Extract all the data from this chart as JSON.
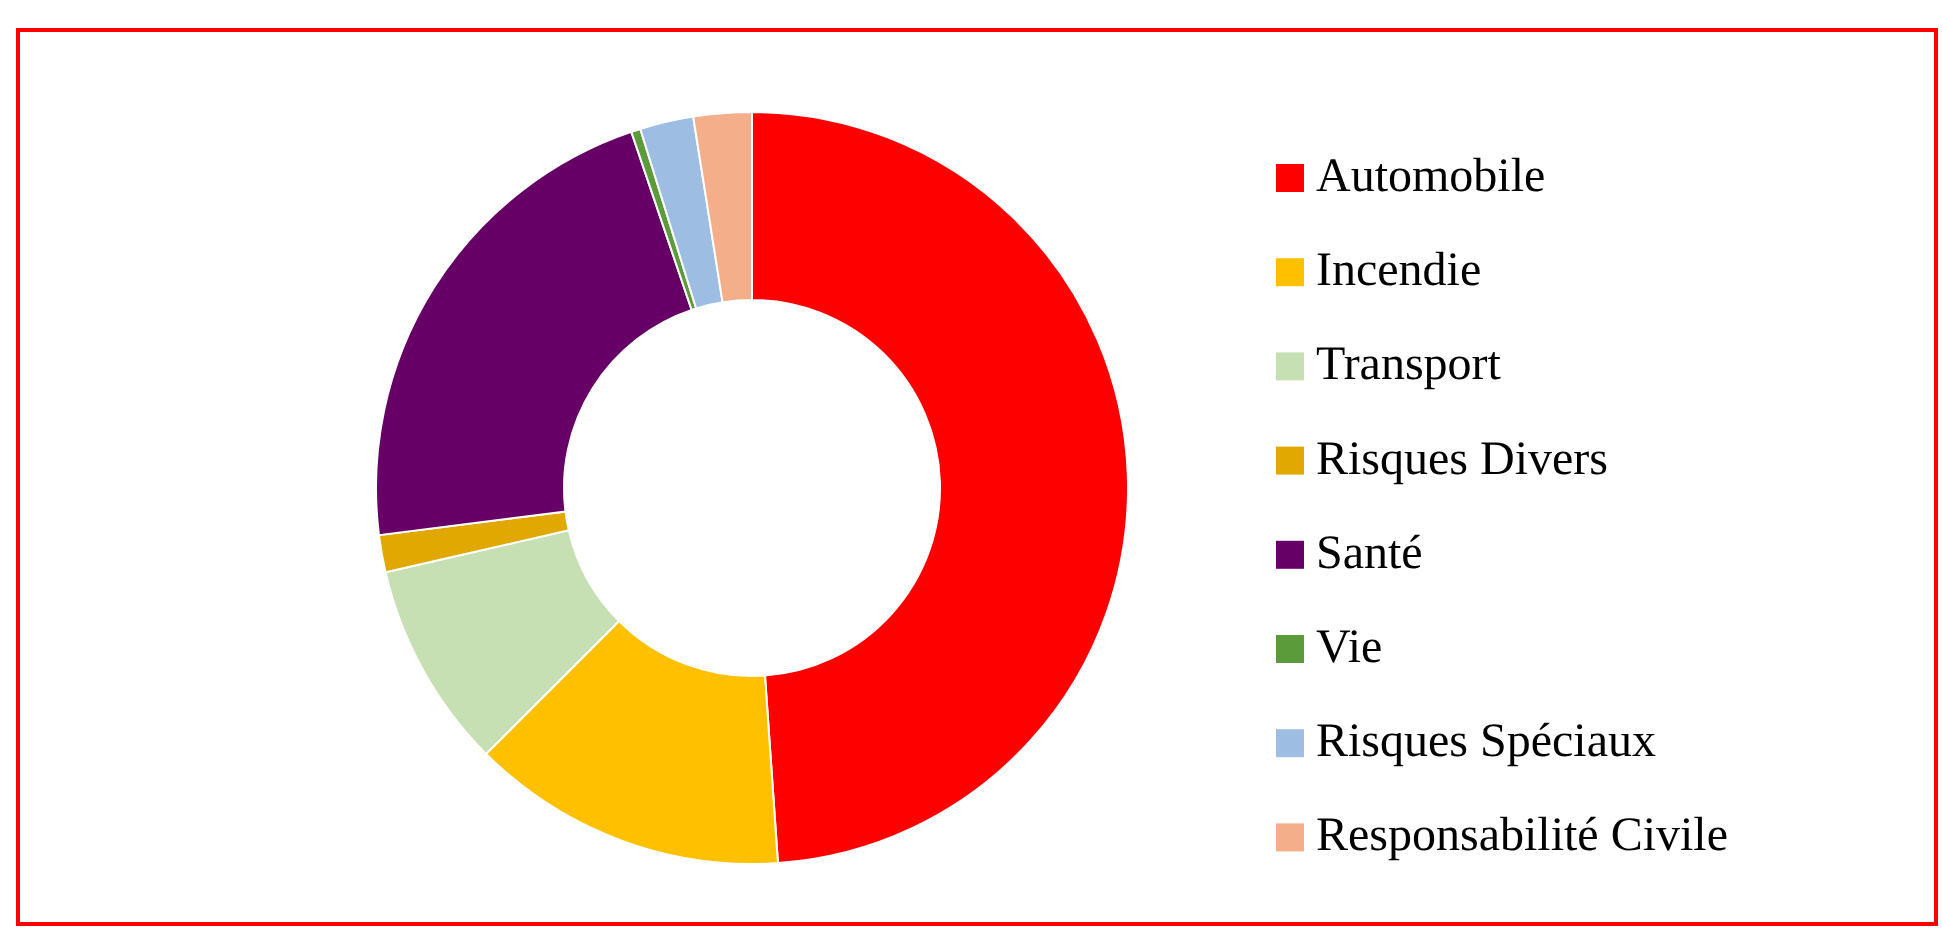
{
  "chart_data": {
    "type": "donut",
    "categories": [
      "Automobile",
      "Incendie",
      "Transport",
      "Risques Divers",
      "Santé",
      "Vie",
      "Risques Spéciaux",
      "Responsabilité Civile"
    ],
    "values": [
      48.9,
      13.6,
      8.9,
      1.6,
      21.8,
      0.4,
      2.3,
      2.5
    ],
    "colors": [
      "#ff0000",
      "#ffc000",
      "#c6e0b4",
      "#e0a800",
      "#660066",
      "#5b9b3a",
      "#9dbde3",
      "#f4ae8a"
    ],
    "legend": "right"
  }
}
